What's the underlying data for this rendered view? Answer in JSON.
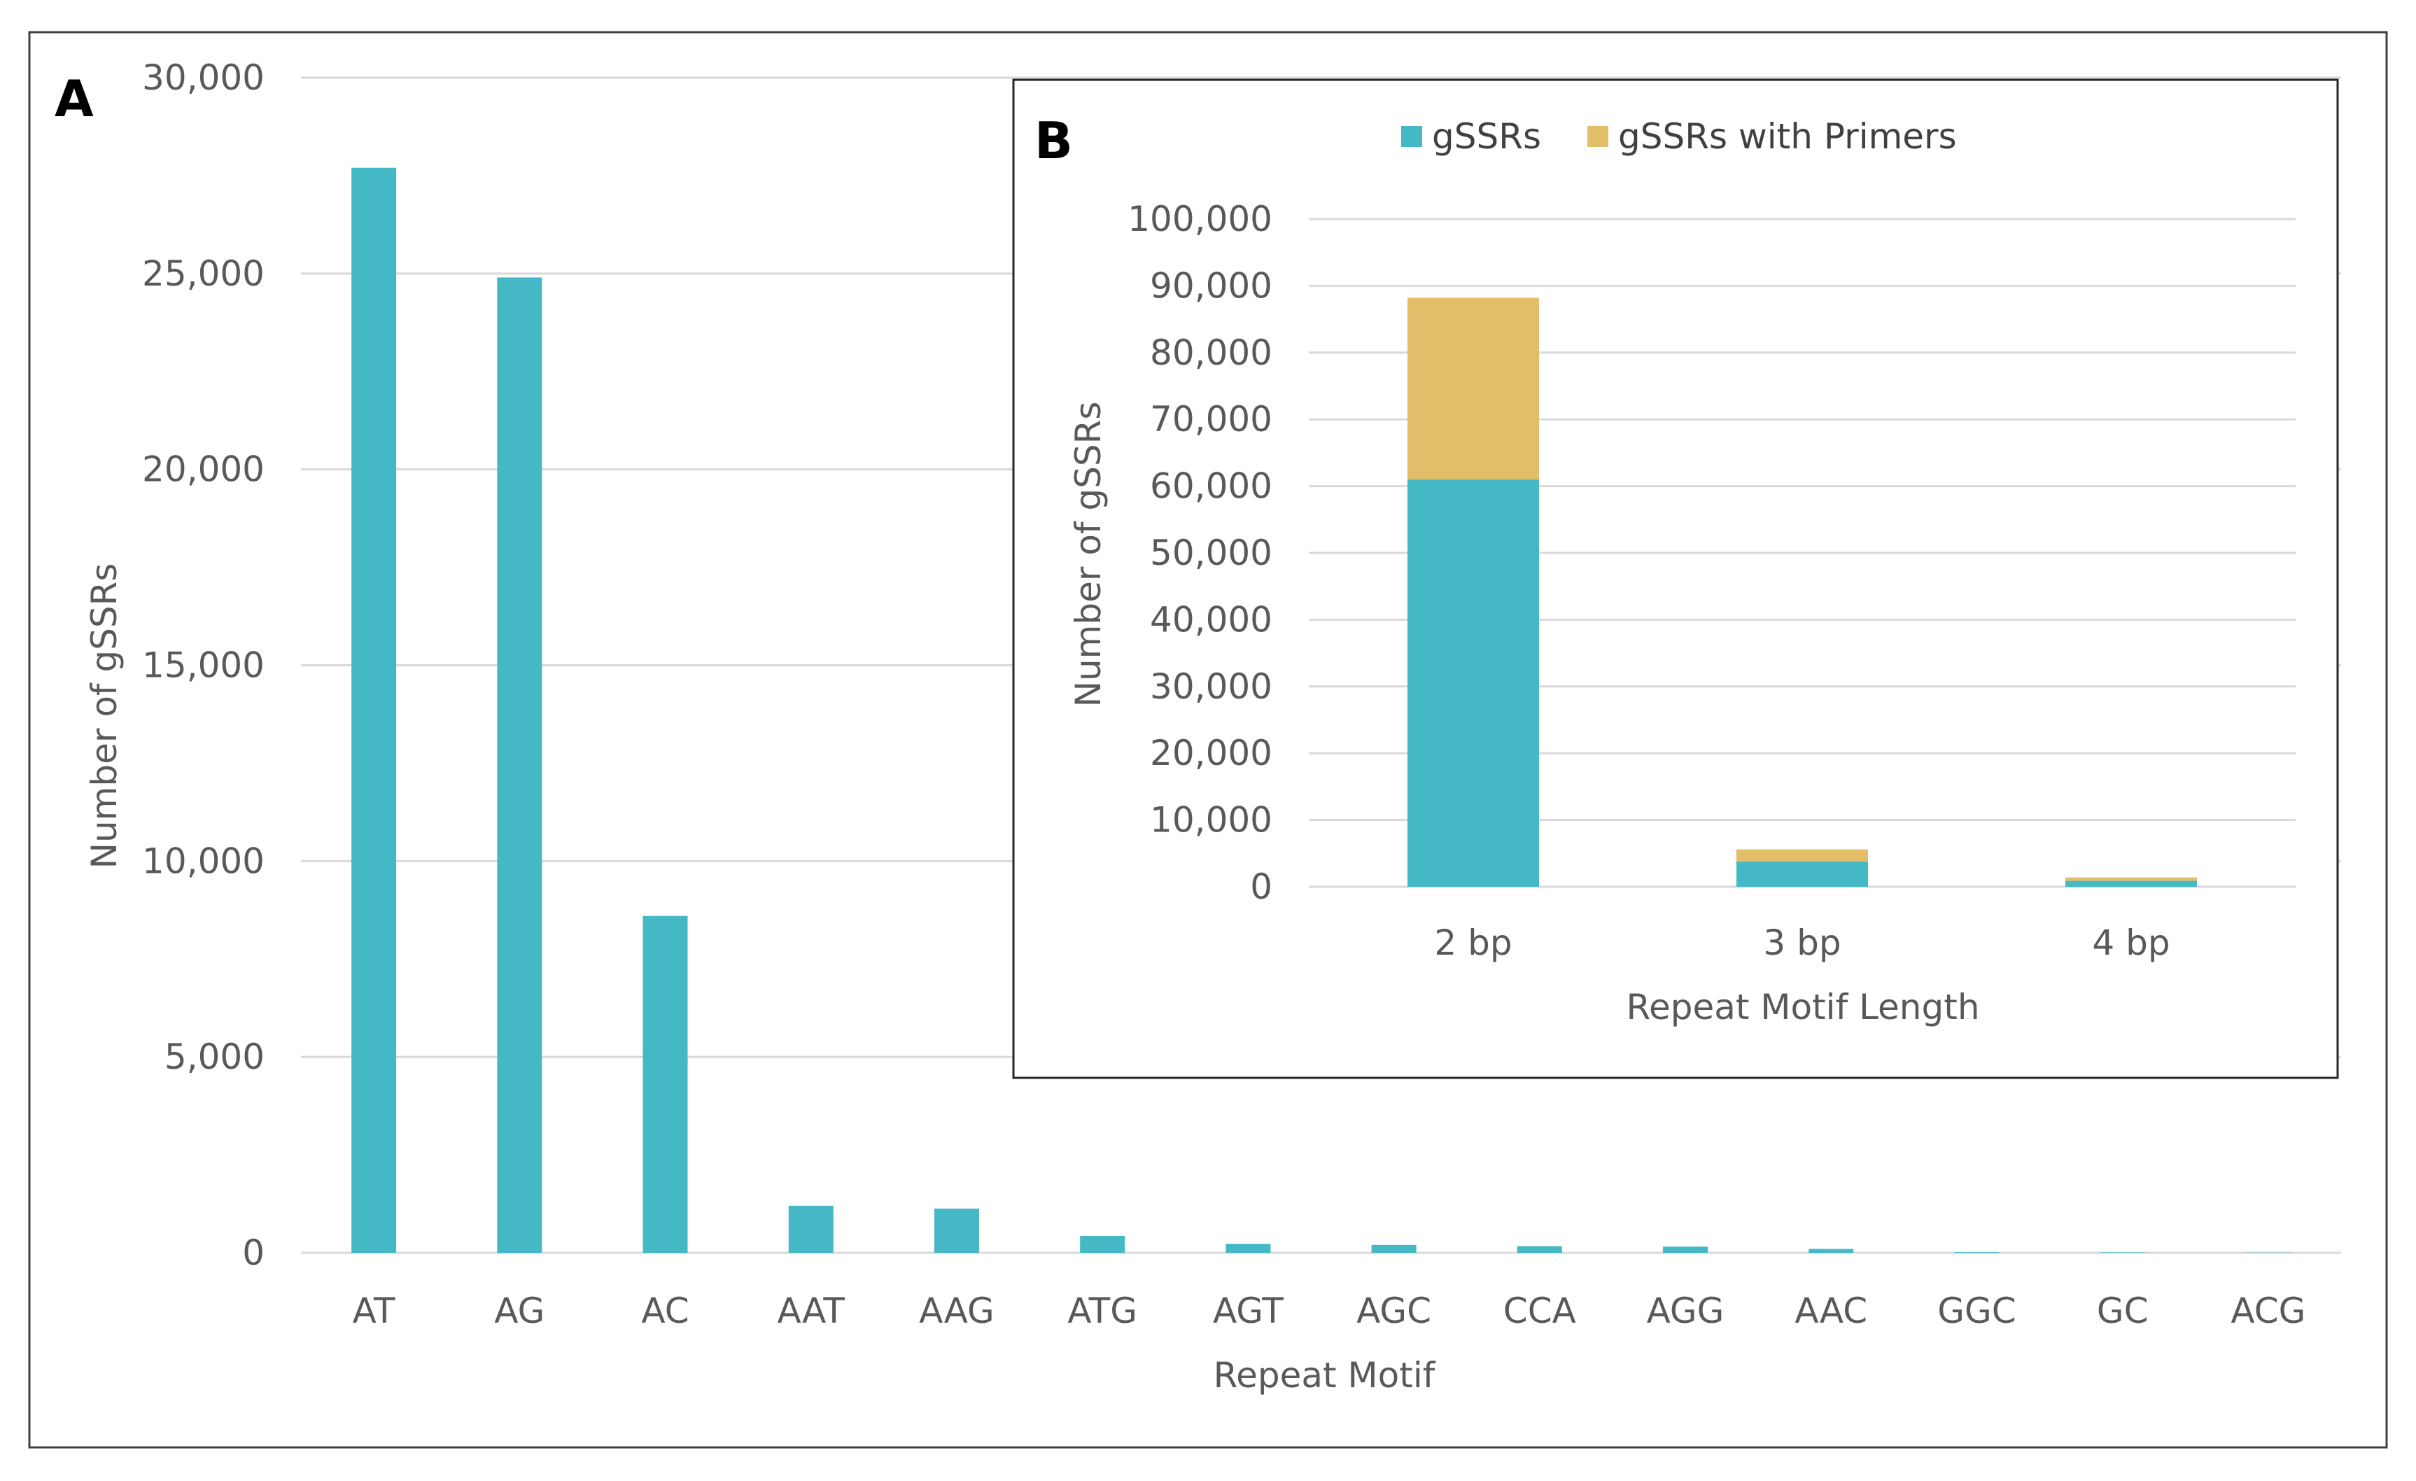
{
  "figure": {
    "colors": {
      "gssrs": "#45B8C6",
      "primers": "#E2BE68",
      "grid": "#D9D9D9",
      "axis_text": "#595959",
      "frame": "#404040"
    }
  },
  "chart_data": [
    {
      "panel": "A",
      "panel_label": "A",
      "type": "bar",
      "title": "",
      "xlabel": "Repeat Motif",
      "ylabel": "Number of gSSRs",
      "ylim": [
        0,
        30000
      ],
      "yticks": [
        0,
        5000,
        10000,
        15000,
        20000,
        25000,
        30000
      ],
      "ytick_labels": [
        "0",
        "5,000",
        "10,000",
        "15,000",
        "20,000",
        "25,000",
        "30,000"
      ],
      "grid": true,
      "categories": [
        "AT",
        "AG",
        "AC",
        "AAT",
        "AAG",
        "ATG",
        "AGT",
        "AGC",
        "CCA",
        "AGG",
        "AAC",
        "GGC",
        "GC",
        "ACG"
      ],
      "values": [
        27700,
        24900,
        8600,
        1200,
        1130,
        430,
        230,
        200,
        170,
        160,
        100,
        15,
        10,
        5
      ]
    },
    {
      "panel": "B",
      "panel_label": "B",
      "type": "bar",
      "stacked": true,
      "title": "",
      "xlabel": "Repeat Motif Length",
      "ylabel": "Number of gSSRs",
      "ylim": [
        0,
        100000
      ],
      "yticks": [
        0,
        10000,
        20000,
        30000,
        40000,
        50000,
        60000,
        70000,
        80000,
        90000,
        100000
      ],
      "ytick_labels": [
        "0",
        "10,000",
        "20,000",
        "30,000",
        "40,000",
        "50,000",
        "60,000",
        "70,000",
        "80,000",
        "90,000",
        "100,000"
      ],
      "grid": true,
      "legend_position": "top",
      "categories": [
        "2 bp",
        "3 bp",
        "4 bp"
      ],
      "series": [
        {
          "name": "gSSRs",
          "values": [
            61000,
            3800,
            900
          ]
        },
        {
          "name": "gSSRs with Primers",
          "values": [
            27200,
            1800,
            500
          ]
        }
      ]
    }
  ]
}
